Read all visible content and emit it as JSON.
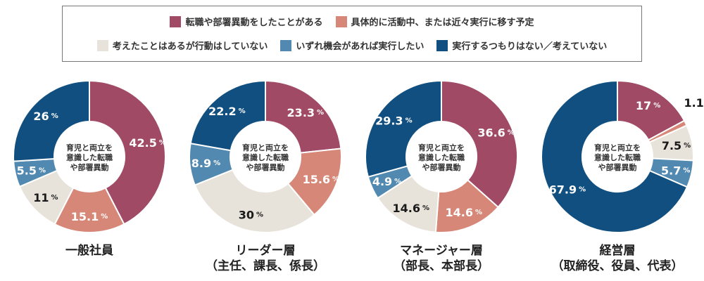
{
  "legend": {
    "items": [
      {
        "label": "転職や部署異動をしたことがある",
        "color": "#a04a66"
      },
      {
        "label": "具体的に活動中、または近々実行に移す予定",
        "color": "#d68778"
      },
      {
        "label": "考えたことはあるが行動はしていない",
        "color": "#e8e3da"
      },
      {
        "label": "いずれ機会があれば実行したい",
        "color": "#5289b0"
      },
      {
        "label": "実行するつもりはない／考えていない",
        "color": "#104f7f"
      }
    ]
  },
  "center_label": [
    "育児と両立を",
    "意識した転職",
    "や部署異動"
  ],
  "percent_unit": "%",
  "chart_data": [
    {
      "type": "pie",
      "title_lines": [
        "一般社員"
      ],
      "categories": [
        "転職や部署異動をしたことがある",
        "具体的に活動中、または近々実行に移す予定",
        "考えたことはあるが行動はしていない",
        "いずれ機会があれば実行したい",
        "実行するつもりはない／考えていない"
      ],
      "values": [
        42.5,
        15.1,
        11,
        5.5,
        26
      ],
      "value_labels": [
        "42.5",
        "15.1",
        "11",
        "5.5",
        "26"
      ]
    },
    {
      "type": "pie",
      "title_lines": [
        "リーダー層",
        "（主任、課長、係長）"
      ],
      "categories": [
        "転職や部署異動をしたことがある",
        "具体的に活動中、または近々実行に移す予定",
        "考えたことはあるが行動はしていない",
        "いずれ機会があれば実行したい",
        "実行するつもりはない／考えていない"
      ],
      "values": [
        23.3,
        15.6,
        30,
        8.9,
        22.2
      ],
      "value_labels": [
        "23.3",
        "15.6",
        "30",
        "8.9",
        "22.2"
      ]
    },
    {
      "type": "pie",
      "title_lines": [
        "マネージャー層",
        "（部長、本部長）"
      ],
      "categories": [
        "転職や部署異動をしたことがある",
        "具体的に活動中、または近々実行に移す予定",
        "考えたことはあるが行動はしていない",
        "いずれ機会があれば実行したい",
        "実行するつもりはない／考えていない"
      ],
      "values": [
        36.6,
        14.6,
        14.6,
        4.9,
        29.3
      ],
      "value_labels": [
        "36.6",
        "14.6",
        "14.6",
        "4.9",
        "29.3"
      ]
    },
    {
      "type": "pie",
      "title_lines": [
        "経営層",
        "（取締役、役員、代表）"
      ],
      "categories": [
        "転職や部署異動をしたことがある",
        "具体的に活動中、または近々実行に移す予定",
        "考えたことはあるが行動はしていない",
        "いずれ機会があれば実行したい",
        "実行するつもりはない／考えていない"
      ],
      "values": [
        17,
        1.1,
        7.5,
        5.7,
        67.9
      ],
      "value_labels": [
        "17",
        "1.1",
        "7.5",
        "5.7",
        "67.9"
      ]
    }
  ]
}
